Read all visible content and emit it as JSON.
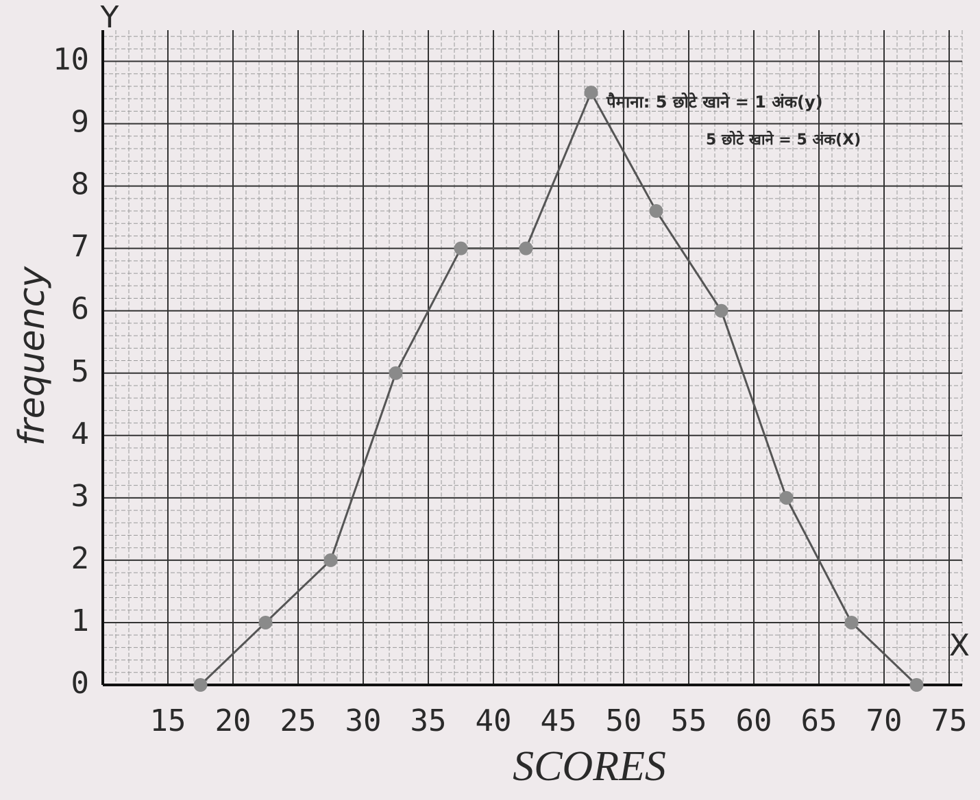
{
  "chart_data": {
    "type": "line",
    "x_label": "SCORES",
    "y_label": "frequency",
    "x_axis_letter": "X",
    "y_axis_letter": "Y",
    "annotations": [
      "पैमाना: 5 छोटे खाने = 1 अंक(y)",
      "5 छोटे खाने = 5 अंक(X)"
    ],
    "x": [
      17.5,
      22.5,
      27.5,
      32.5,
      37.5,
      42.5,
      47.5,
      52.5,
      57.5,
      62.5,
      67.5,
      72.5
    ],
    "series": [
      {
        "color": "#555555",
        "values": [
          0,
          1,
          2,
          5,
          7,
          7,
          9.5,
          7.6,
          6,
          3,
          1,
          0
        ]
      }
    ],
    "xlim": [
      10,
      76
    ],
    "xticks": [
      15,
      20,
      25,
      30,
      35,
      40,
      45,
      50,
      55,
      60,
      65,
      70,
      75
    ],
    "ylim": [
      0,
      10.5
    ],
    "yticks": [
      0,
      1,
      2,
      3,
      4,
      5,
      6,
      7,
      8,
      9,
      10
    ],
    "grid": true
  }
}
